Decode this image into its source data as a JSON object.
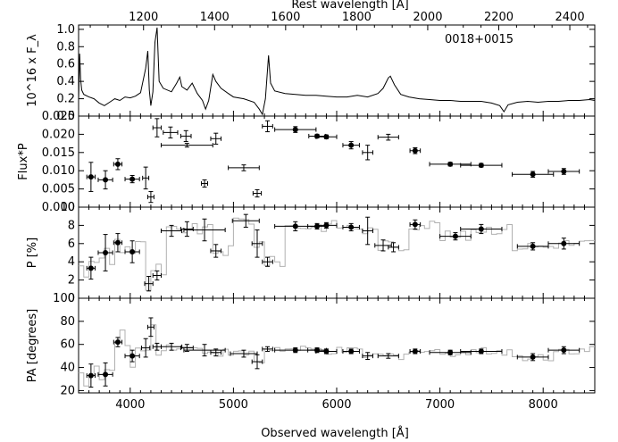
{
  "figure": {
    "object_label": "0018+0015",
    "top_axis_label": "Rest wavelength [Å]",
    "bottom_axis_label": "Observed wavelength [Å]",
    "top_ticks": [
      "1200",
      "1400",
      "1600",
      "1800",
      "2000",
      "2200",
      "2400"
    ],
    "bottom_ticks": [
      "4000",
      "5000",
      "6000",
      "7000",
      "8000"
    ]
  },
  "chart_data": [
    {
      "type": "line",
      "panel": "flux",
      "ylabel": "10^16 x F_λ",
      "ylim": [
        0.0,
        1.05
      ],
      "yticks": [
        "1.0",
        "0.8",
        "0.6",
        "0.4",
        "0.2",
        "0.0"
      ],
      "xlim": [
        3500,
        8500
      ],
      "x_units": "observed wavelength (Å)",
      "series": [
        {
          "values": [
            [
              3500,
              0.18
            ],
            [
              3510,
              0.72
            ],
            [
              3520,
              0.42
            ],
            [
              3530,
              0.3
            ],
            [
              3550,
              0.25
            ],
            [
              3600,
              0.22
            ],
            [
              3650,
              0.2
            ],
            [
              3700,
              0.15
            ],
            [
              3750,
              0.12
            ],
            [
              3800,
              0.16
            ],
            [
              3850,
              0.2
            ],
            [
              3900,
              0.18
            ],
            [
              3950,
              0.22
            ],
            [
              4000,
              0.21
            ],
            [
              4050,
              0.23
            ],
            [
              4100,
              0.27
            ],
            [
              4150,
              0.55
            ],
            [
              4170,
              0.75
            ],
            [
              4185,
              0.3
            ],
            [
              4200,
              0.12
            ],
            [
              4220,
              0.28
            ],
            [
              4240,
              0.85
            ],
            [
              4260,
              1.02
            ],
            [
              4280,
              0.4
            ],
            [
              4320,
              0.32
            ],
            [
              4400,
              0.28
            ],
            [
              4450,
              0.38
            ],
            [
              4480,
              0.45
            ],
            [
              4500,
              0.34
            ],
            [
              4550,
              0.3
            ],
            [
              4600,
              0.38
            ],
            [
              4650,
              0.26
            ],
            [
              4700,
              0.18
            ],
            [
              4730,
              0.08
            ],
            [
              4760,
              0.18
            ],
            [
              4800,
              0.48
            ],
            [
              4830,
              0.4
            ],
            [
              4880,
              0.32
            ],
            [
              4950,
              0.26
            ],
            [
              5000,
              0.22
            ],
            [
              5100,
              0.2
            ],
            [
              5200,
              0.16
            ],
            [
              5250,
              0.08
            ],
            [
              5280,
              0.02
            ],
            [
              5310,
              0.2
            ],
            [
              5340,
              0.7
            ],
            [
              5360,
              0.38
            ],
            [
              5400,
              0.29
            ],
            [
              5500,
              0.26
            ],
            [
              5600,
              0.25
            ],
            [
              5700,
              0.24
            ],
            [
              5800,
              0.24
            ],
            [
              5900,
              0.23
            ],
            [
              6000,
              0.22
            ],
            [
              6100,
              0.22
            ],
            [
              6200,
              0.24
            ],
            [
              6300,
              0.22
            ],
            [
              6400,
              0.26
            ],
            [
              6450,
              0.32
            ],
            [
              6500,
              0.44
            ],
            [
              6520,
              0.46
            ],
            [
              6560,
              0.36
            ],
            [
              6620,
              0.25
            ],
            [
              6700,
              0.22
            ],
            [
              6800,
              0.2
            ],
            [
              6900,
              0.19
            ],
            [
              7000,
              0.18
            ],
            [
              7100,
              0.18
            ],
            [
              7200,
              0.17
            ],
            [
              7300,
              0.17
            ],
            [
              7400,
              0.17
            ],
            [
              7500,
              0.15
            ],
            [
              7580,
              0.12
            ],
            [
              7620,
              0.05
            ],
            [
              7660,
              0.13
            ],
            [
              7750,
              0.16
            ],
            [
              7850,
              0.17
            ],
            [
              7950,
              0.16
            ],
            [
              8050,
              0.17
            ],
            [
              8150,
              0.17
            ],
            [
              8250,
              0.18
            ],
            [
              8350,
              0.18
            ],
            [
              8450,
              0.19
            ],
            [
              8500,
              0.18
            ]
          ]
        }
      ]
    },
    {
      "type": "scatter",
      "panel": "polarized_flux",
      "ylabel": "Flux*P",
      "ylim": [
        0.0,
        0.025
      ],
      "yticks": [
        "0.025",
        "0.020",
        "0.015",
        "0.010",
        "0.005",
        "0.000"
      ],
      "xlim": [
        3500,
        8500
      ],
      "series": [
        {
          "points": [
            {
              "x": 3620,
              "y": 0.0083,
              "dx": 40,
              "dy": 0.004,
              "filled": true
            },
            {
              "x": 3760,
              "y": 0.0075,
              "dx": 70,
              "dy": 0.0025,
              "filled": true
            },
            {
              "x": 3880,
              "y": 0.0118,
              "dx": 40,
              "dy": 0.0015,
              "filled": true
            },
            {
              "x": 4020,
              "y": 0.0077,
              "dx": 70,
              "dy": 0.001,
              "filled": true
            },
            {
              "x": 4150,
              "y": 0.008,
              "dx": 30,
              "dy": 0.003,
              "filled": false
            },
            {
              "x": 4200,
              "y": 0.0028,
              "dx": 30,
              "dy": 0.0015,
              "filled": false
            },
            {
              "x": 4260,
              "y": 0.0218,
              "dx": 40,
              "dy": 0.0025,
              "filled": false
            },
            {
              "x": 4390,
              "y": 0.0205,
              "dx": 70,
              "dy": 0.0015,
              "filled": false
            },
            {
              "x": 4540,
              "y": 0.0195,
              "dx": 50,
              "dy": 0.0015,
              "filled": false
            },
            {
              "x": 4550,
              "y": 0.017,
              "dx": 250,
              "dy": 0.0005,
              "filled": false
            },
            {
              "x": 4720,
              "y": 0.0065,
              "dx": 30,
              "dy": 0.001,
              "filled": false
            },
            {
              "x": 4830,
              "y": 0.0188,
              "dx": 50,
              "dy": 0.0015,
              "filled": false
            },
            {
              "x": 5100,
              "y": 0.0108,
              "dx": 150,
              "dy": 0.0008,
              "filled": false
            },
            {
              "x": 5230,
              "y": 0.0038,
              "dx": 40,
              "dy": 0.001,
              "filled": false
            },
            {
              "x": 5330,
              "y": 0.0222,
              "dx": 50,
              "dy": 0.0015,
              "filled": false
            },
            {
              "x": 5600,
              "y": 0.0213,
              "dx": 200,
              "dy": 0.0008,
              "filled": true
            },
            {
              "x": 5810,
              "y": 0.0195,
              "dx": 80,
              "dy": 0.0005,
              "filled": true
            },
            {
              "x": 5900,
              "y": 0.0193,
              "dx": 100,
              "dy": 0.0005,
              "filled": true
            },
            {
              "x": 6140,
              "y": 0.017,
              "dx": 80,
              "dy": 0.001,
              "filled": true
            },
            {
              "x": 6300,
              "y": 0.015,
              "dx": 50,
              "dy": 0.002,
              "filled": false
            },
            {
              "x": 6500,
              "y": 0.0192,
              "dx": 100,
              "dy": 0.0008,
              "filled": false
            },
            {
              "x": 6760,
              "y": 0.0155,
              "dx": 50,
              "dy": 0.0008,
              "filled": true
            },
            {
              "x": 7100,
              "y": 0.0118,
              "dx": 200,
              "dy": 0.0005,
              "filled": true
            },
            {
              "x": 7400,
              "y": 0.0115,
              "dx": 200,
              "dy": 0.0005,
              "filled": true
            },
            {
              "x": 7900,
              "y": 0.009,
              "dx": 200,
              "dy": 0.0008,
              "filled": true
            },
            {
              "x": 8200,
              "y": 0.0098,
              "dx": 150,
              "dy": 0.0008,
              "filled": true
            }
          ]
        }
      ]
    },
    {
      "type": "scatter",
      "panel": "polarization",
      "ylabel": "P [%]",
      "ylim": [
        0,
        10
      ],
      "yticks": [
        "10",
        "8",
        "6",
        "4",
        "2",
        "0"
      ],
      "xlim": [
        3500,
        8500
      ],
      "series": [
        {
          "points": [
            {
              "x": 3620,
              "y": 3.3,
              "dx": 40,
              "dy": 1.2,
              "filled": true
            },
            {
              "x": 3760,
              "y": 5.0,
              "dx": 70,
              "dy": 2.0,
              "filled": true
            },
            {
              "x": 3880,
              "y": 6.1,
              "dx": 40,
              "dy": 1.0,
              "filled": true
            },
            {
              "x": 4020,
              "y": 5.1,
              "dx": 70,
              "dy": 1.2,
              "filled": true
            },
            {
              "x": 4180,
              "y": 1.6,
              "dx": 40,
              "dy": 0.8,
              "filled": false
            },
            {
              "x": 4260,
              "y": 2.5,
              "dx": 40,
              "dy": 0.5,
              "filled": false
            },
            {
              "x": 4400,
              "y": 7.4,
              "dx": 100,
              "dy": 0.6,
              "filled": false
            },
            {
              "x": 4550,
              "y": 7.6,
              "dx": 60,
              "dy": 0.8,
              "filled": false
            },
            {
              "x": 4720,
              "y": 7.5,
              "dx": 200,
              "dy": 1.2,
              "filled": false
            },
            {
              "x": 4830,
              "y": 5.2,
              "dx": 50,
              "dy": 0.7,
              "filled": false
            },
            {
              "x": 5120,
              "y": 8.5,
              "dx": 130,
              "dy": 0.7,
              "filled": false
            },
            {
              "x": 5230,
              "y": 6.0,
              "dx": 50,
              "dy": 1.5,
              "filled": false
            },
            {
              "x": 5330,
              "y": 4.0,
              "dx": 50,
              "dy": 0.5,
              "filled": false
            },
            {
              "x": 5600,
              "y": 7.9,
              "dx": 200,
              "dy": 0.5,
              "filled": true
            },
            {
              "x": 5810,
              "y": 7.9,
              "dx": 90,
              "dy": 0.3,
              "filled": true
            },
            {
              "x": 5900,
              "y": 8.0,
              "dx": 100,
              "dy": 0.3,
              "filled": true
            },
            {
              "x": 6140,
              "y": 7.8,
              "dx": 80,
              "dy": 0.4,
              "filled": true
            },
            {
              "x": 6300,
              "y": 7.4,
              "dx": 50,
              "dy": 1.5,
              "filled": false
            },
            {
              "x": 6450,
              "y": 5.8,
              "dx": 80,
              "dy": 0.6,
              "filled": false
            },
            {
              "x": 6550,
              "y": 5.6,
              "dx": 50,
              "dy": 0.5,
              "filled": false
            },
            {
              "x": 6760,
              "y": 8.1,
              "dx": 50,
              "dy": 0.5,
              "filled": true
            },
            {
              "x": 7150,
              "y": 6.8,
              "dx": 150,
              "dy": 0.4,
              "filled": true
            },
            {
              "x": 7400,
              "y": 7.6,
              "dx": 200,
              "dy": 0.5,
              "filled": true
            },
            {
              "x": 7900,
              "y": 5.7,
              "dx": 150,
              "dy": 0.4,
              "filled": true
            },
            {
              "x": 8200,
              "y": 6.0,
              "dx": 150,
              "dy": 0.6,
              "filled": true
            }
          ]
        }
      ]
    },
    {
      "type": "scatter",
      "panel": "position_angle",
      "ylabel": "PA [degrees]",
      "ylim": [
        18,
        100
      ],
      "yticks": [
        "100",
        "80",
        "60",
        "40",
        "20"
      ],
      "xlim": [
        3500,
        8500
      ],
      "series": [
        {
          "points": [
            {
              "x": 3620,
              "y": 33,
              "dx": 40,
              "dy": 10,
              "filled": true
            },
            {
              "x": 3760,
              "y": 34,
              "dx": 70,
              "dy": 10,
              "filled": true
            },
            {
              "x": 3880,
              "y": 62,
              "dx": 40,
              "dy": 4,
              "filled": true
            },
            {
              "x": 4020,
              "y": 50,
              "dx": 70,
              "dy": 5,
              "filled": true
            },
            {
              "x": 4150,
              "y": 57,
              "dx": 40,
              "dy": 8,
              "filled": false
            },
            {
              "x": 4200,
              "y": 75,
              "dx": 30,
              "dy": 8,
              "filled": false
            },
            {
              "x": 4260,
              "y": 58,
              "dx": 40,
              "dy": 3,
              "filled": false
            },
            {
              "x": 4400,
              "y": 58,
              "dx": 100,
              "dy": 3,
              "filled": false
            },
            {
              "x": 4550,
              "y": 57,
              "dx": 60,
              "dy": 3,
              "filled": false
            },
            {
              "x": 4720,
              "y": 55,
              "dx": 200,
              "dy": 5,
              "filled": false
            },
            {
              "x": 4830,
              "y": 53,
              "dx": 50,
              "dy": 3,
              "filled": false
            },
            {
              "x": 5100,
              "y": 52,
              "dx": 130,
              "dy": 3,
              "filled": false
            },
            {
              "x": 5230,
              "y": 45,
              "dx": 50,
              "dy": 6,
              "filled": false
            },
            {
              "x": 5330,
              "y": 56,
              "dx": 50,
              "dy": 2,
              "filled": false
            },
            {
              "x": 5600,
              "y": 55,
              "dx": 200,
              "dy": 2,
              "filled": true
            },
            {
              "x": 5810,
              "y": 55,
              "dx": 90,
              "dy": 2,
              "filled": true
            },
            {
              "x": 5900,
              "y": 54,
              "dx": 100,
              "dy": 2,
              "filled": true
            },
            {
              "x": 6140,
              "y": 54,
              "dx": 80,
              "dy": 2,
              "filled": true
            },
            {
              "x": 6300,
              "y": 50,
              "dx": 50,
              "dy": 3,
              "filled": false
            },
            {
              "x": 6500,
              "y": 50,
              "dx": 100,
              "dy": 2,
              "filled": false
            },
            {
              "x": 6760,
              "y": 54,
              "dx": 50,
              "dy": 2,
              "filled": true
            },
            {
              "x": 7100,
              "y": 53,
              "dx": 200,
              "dy": 2,
              "filled": true
            },
            {
              "x": 7400,
              "y": 54,
              "dx": 200,
              "dy": 2,
              "filled": true
            },
            {
              "x": 7900,
              "y": 49,
              "dx": 150,
              "dy": 3,
              "filled": true
            },
            {
              "x": 8200,
              "y": 55,
              "dx": 150,
              "dy": 3,
              "filled": true
            }
          ]
        }
      ]
    }
  ]
}
